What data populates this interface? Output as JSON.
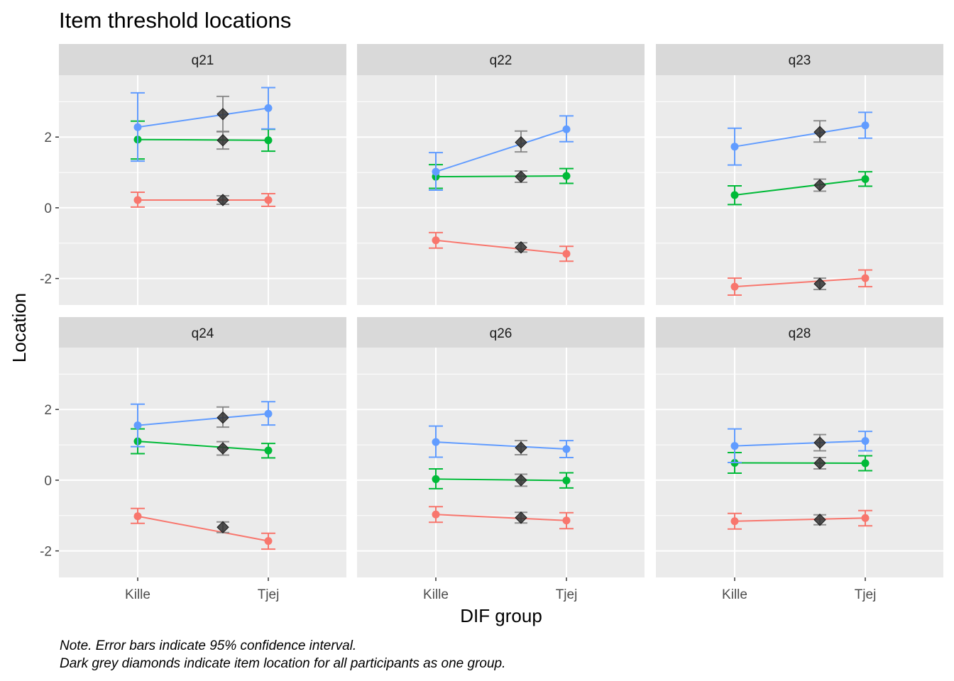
{
  "chart_data": {
    "type": "line",
    "title": "Item threshold locations",
    "xlabel": "DIF group",
    "ylabel": "Location",
    "categories": [
      "Kille",
      "Tjej"
    ],
    "overall_label": "",
    "ylim": [
      -2.75,
      3.75
    ],
    "yticks": [
      -2,
      0,
      2
    ],
    "yticklabels": [
      "-2",
      "0",
      "2"
    ],
    "grid": true,
    "legend": "none",
    "colors": {
      "threshold_1": "#F8766D",
      "threshold_2": "#00BA38",
      "threshold_3": "#619CFF",
      "overall": "#333333",
      "panel_bg": "#EBEBEB",
      "strip_bg": "#D9D9D9",
      "grid": "#FFFFFF"
    },
    "panels": [
      {
        "name": "q21",
        "thresholds": [
          {
            "color": "#F8766D",
            "Kille": 0.22,
            "Kille_ci": [
              0.02,
              0.44
            ],
            "Tjej": 0.22,
            "Tjej_ci": [
              0.04,
              0.4
            ],
            "overall": 0.22,
            "overall_ci": [
              0.1,
              0.34
            ]
          },
          {
            "color": "#00BA38",
            "Kille": 1.93,
            "Kille_ci": [
              1.38,
              2.45
            ],
            "Tjej": 1.91,
            "Tjej_ci": [
              1.6,
              2.22
            ],
            "overall": 1.91,
            "overall_ci": [
              1.66,
              2.16
            ]
          },
          {
            "color": "#619CFF",
            "Kille": 2.28,
            "Kille_ci": [
              1.32,
              3.25
            ],
            "Tjej": 2.82,
            "Tjej_ci": [
              2.23,
              3.4
            ],
            "overall": 2.65,
            "overall_ci": [
              2.15,
              3.15
            ]
          }
        ]
      },
      {
        "name": "q22",
        "thresholds": [
          {
            "color": "#F8766D",
            "Kille": -0.92,
            "Kille_ci": [
              -1.14,
              -0.7
            ],
            "Tjej": -1.3,
            "Tjej_ci": [
              -1.51,
              -1.09
            ],
            "overall": -1.12,
            "overall_ci": [
              -1.25,
              -0.99
            ]
          },
          {
            "color": "#00BA38",
            "Kille": 0.88,
            "Kille_ci": [
              0.55,
              1.22
            ],
            "Tjej": 0.9,
            "Tjej_ci": [
              0.69,
              1.11
            ],
            "overall": 0.88,
            "overall_ci": [
              0.72,
              1.04
            ]
          },
          {
            "color": "#619CFF",
            "Kille": 1.02,
            "Kille_ci": [
              0.5,
              1.56
            ],
            "Tjej": 2.22,
            "Tjej_ci": [
              1.87,
              2.6
            ],
            "overall": 1.85,
            "overall_ci": [
              1.58,
              2.17
            ]
          }
        ]
      },
      {
        "name": "q23",
        "thresholds": [
          {
            "color": "#F8766D",
            "Kille": -2.23,
            "Kille_ci": [
              -2.47,
              -1.99
            ],
            "Tjej": -1.99,
            "Tjej_ci": [
              -2.23,
              -1.76
            ],
            "overall": -2.15,
            "overall_ci": [
              -2.31,
              -1.99
            ]
          },
          {
            "color": "#00BA38",
            "Kille": 0.36,
            "Kille_ci": [
              0.09,
              0.62
            ],
            "Tjej": 0.81,
            "Tjej_ci": [
              0.61,
              1.02
            ],
            "overall": 0.64,
            "overall_ci": [
              0.47,
              0.81
            ]
          },
          {
            "color": "#619CFF",
            "Kille": 1.73,
            "Kille_ci": [
              1.21,
              2.25
            ],
            "Tjej": 2.33,
            "Tjej_ci": [
              1.97,
              2.7
            ],
            "overall": 2.14,
            "overall_ci": [
              1.86,
              2.46
            ]
          }
        ]
      },
      {
        "name": "q24",
        "thresholds": [
          {
            "color": "#F8766D",
            "Kille": -1.02,
            "Kille_ci": [
              -1.22,
              -0.8
            ],
            "Tjej": -1.72,
            "Tjej_ci": [
              -1.95,
              -1.5
            ],
            "overall": -1.33,
            "overall_ci": [
              -1.48,
              -1.18
            ]
          },
          {
            "color": "#00BA38",
            "Kille": 1.1,
            "Kille_ci": [
              0.75,
              1.45
            ],
            "Tjej": 0.84,
            "Tjej_ci": [
              0.63,
              1.04
            ],
            "overall": 0.9,
            "overall_ci": [
              0.71,
              1.09
            ]
          },
          {
            "color": "#619CFF",
            "Kille": 1.55,
            "Kille_ci": [
              0.95,
              2.15
            ],
            "Tjej": 1.88,
            "Tjej_ci": [
              1.56,
              2.22
            ],
            "overall": 1.77,
            "overall_ci": [
              1.5,
              2.07
            ]
          }
        ]
      },
      {
        "name": "q26",
        "thresholds": [
          {
            "color": "#F8766D",
            "Kille": -0.97,
            "Kille_ci": [
              -1.19,
              -0.75
            ],
            "Tjej": -1.14,
            "Tjej_ci": [
              -1.37,
              -0.92
            ],
            "overall": -1.06,
            "overall_ci": [
              -1.21,
              -0.91
            ]
          },
          {
            "color": "#00BA38",
            "Kille": 0.03,
            "Kille_ci": [
              -0.24,
              0.32
            ],
            "Tjej": -0.01,
            "Tjej_ci": [
              -0.22,
              0.21
            ],
            "overall": 0.0,
            "overall_ci": [
              -0.17,
              0.17
            ]
          },
          {
            "color": "#619CFF",
            "Kille": 1.08,
            "Kille_ci": [
              0.65,
              1.53
            ],
            "Tjej": 0.88,
            "Tjej_ci": [
              0.64,
              1.12
            ],
            "overall": 0.92,
            "overall_ci": [
              0.72,
              1.12
            ]
          }
        ]
      },
      {
        "name": "q28",
        "thresholds": [
          {
            "color": "#F8766D",
            "Kille": -1.16,
            "Kille_ci": [
              -1.38,
              -0.94
            ],
            "Tjej": -1.07,
            "Tjej_ci": [
              -1.29,
              -0.86
            ],
            "overall": -1.12,
            "overall_ci": [
              -1.26,
              -0.98
            ]
          },
          {
            "color": "#00BA38",
            "Kille": 0.49,
            "Kille_ci": [
              0.2,
              0.78
            ],
            "Tjej": 0.48,
            "Tjej_ci": [
              0.27,
              0.69
            ],
            "overall": 0.48,
            "overall_ci": [
              0.32,
              0.64
            ]
          },
          {
            "color": "#619CFF",
            "Kille": 0.97,
            "Kille_ci": [
              0.5,
              1.45
            ],
            "Tjej": 1.11,
            "Tjej_ci": [
              0.83,
              1.38
            ],
            "overall": 1.06,
            "overall_ci": [
              0.83,
              1.29
            ]
          }
        ]
      }
    ],
    "notes": [
      "Note. Error bars indicate 95% confidence interval.",
      "Dark grey diamonds indicate item location for all participants as one group."
    ]
  }
}
